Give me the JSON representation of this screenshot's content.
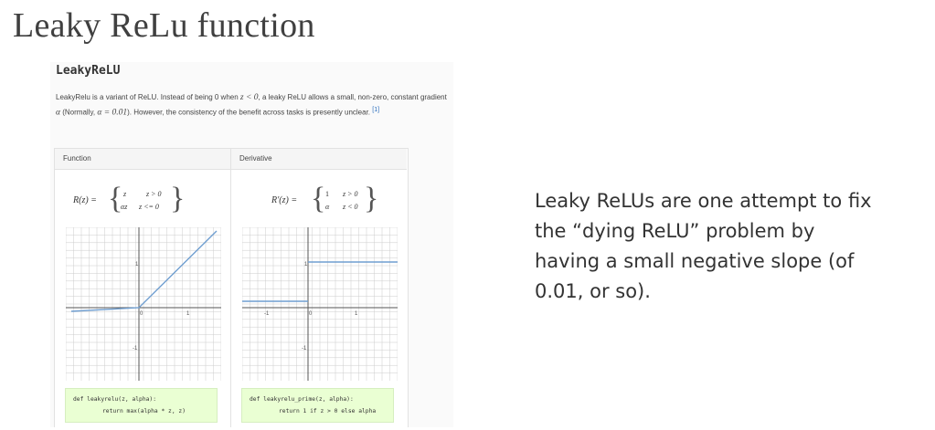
{
  "slide": {
    "title": "Leaky ReLu function",
    "note": "Leaky ReLUs are one attempt to fix the “dying ReLU” problem by having a small negative slope (of 0.01, or so)."
  },
  "card": {
    "heading": "LeakyReLU",
    "desc_p1": "LeakyRelu is a variant of ReLU. Instead of being 0 when",
    "desc_m1": "z < 0",
    "desc_p2": ", a leaky ReLU allows a small, non-zero, constant gradient",
    "desc_m2": "α",
    "desc_p3": "(Normally,",
    "desc_m3": "α = 0.01",
    "desc_p4": "). However, the consistency of the benefit across tasks is presently unclear.",
    "citation": "[1]"
  },
  "function_col": {
    "header": "Function",
    "formula": {
      "lhs": "R(z) =",
      "row1_expr": "z",
      "row1_cond": "z > 0",
      "row2_expr": "αz",
      "row2_cond": "z <= 0"
    },
    "ticks": {
      "x_neg": "-1",
      "x_zero": "0",
      "x_pos": "1",
      "y_pos": "1",
      "y_neg": "-1"
    },
    "code_line1": "def leakyrelu(z, alpha):",
    "code_line2": "return max(alpha * z, z)"
  },
  "derivative_col": {
    "header": "Derivative",
    "formula": {
      "lhs": "R′(z) =",
      "row1_expr": "1",
      "row1_cond": "z > 0",
      "row2_expr": "α",
      "row2_cond": "z < 0"
    },
    "ticks": {
      "x_neg": "-1",
      "x_zero": "0",
      "x_pos": "1",
      "y_pos": "1",
      "y_neg": "-1"
    },
    "code_line1": "def leakyrelu_prime(z, alpha):",
    "code_line2": "return 1 if z > 0 else alpha"
  },
  "colors": {
    "plot_line": "#6f9ed0",
    "code_bg": "#eaffd3",
    "grid": "#cccccc",
    "axis": "#555555"
  }
}
